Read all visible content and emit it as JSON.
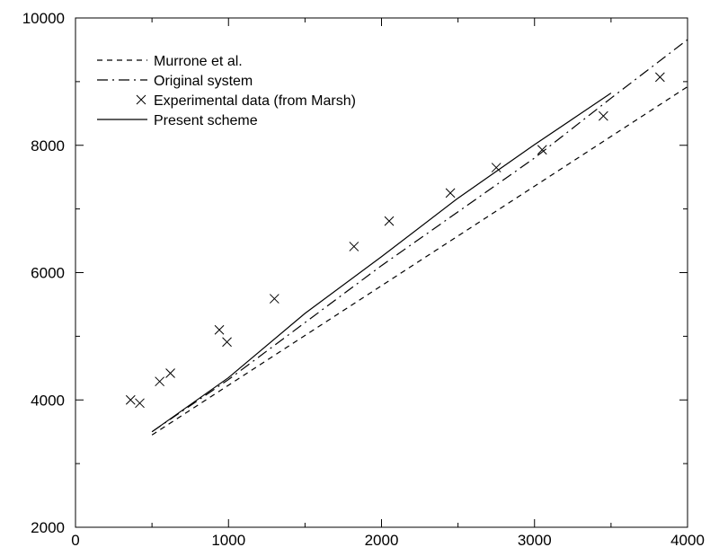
{
  "chart_data": {
    "type": "line",
    "title": "",
    "xlabel": "",
    "ylabel": "",
    "xlim": [
      0,
      4000
    ],
    "ylim": [
      2000,
      10000
    ],
    "x_ticks": [
      0,
      1000,
      2000,
      3000,
      4000
    ],
    "y_ticks": [
      2000,
      4000,
      6000,
      8000,
      10000
    ],
    "x_tick_labels": [
      "0",
      "1000",
      "2000",
      "3000",
      "4000"
    ],
    "y_tick_labels": [
      "2000",
      "4000",
      "6000",
      "8000",
      "10000"
    ],
    "grid": false,
    "legend_position": "top-left",
    "series": [
      {
        "name": "Murrone et al.",
        "style": "dashed",
        "x": [
          500,
          4000
        ],
        "y": [
          3450,
          8920
        ]
      },
      {
        "name": "Original system",
        "style": "dashdot",
        "x": [
          500,
          1000,
          2000,
          3000,
          3500,
          4000
        ],
        "y": [
          3500,
          4320,
          6110,
          7800,
          8740,
          9660
        ]
      },
      {
        "name": "Experimental data (from Marsh)",
        "style": "markers",
        "x": [
          360,
          420,
          550,
          620,
          940,
          990,
          1300,
          1820,
          2050,
          2450,
          2750,
          3050,
          3450,
          3820
        ],
        "y": [
          4000,
          3950,
          4290,
          4420,
          5100,
          4910,
          5590,
          6410,
          6810,
          7250,
          7650,
          7930,
          8460,
          9070
        ]
      },
      {
        "name": "Present scheme",
        "style": "solid",
        "x": [
          500,
          1000,
          1500,
          2000,
          2500,
          3000,
          3500
        ],
        "y": [
          3500,
          4350,
          5360,
          6250,
          7170,
          8010,
          8820
        ]
      }
    ]
  }
}
